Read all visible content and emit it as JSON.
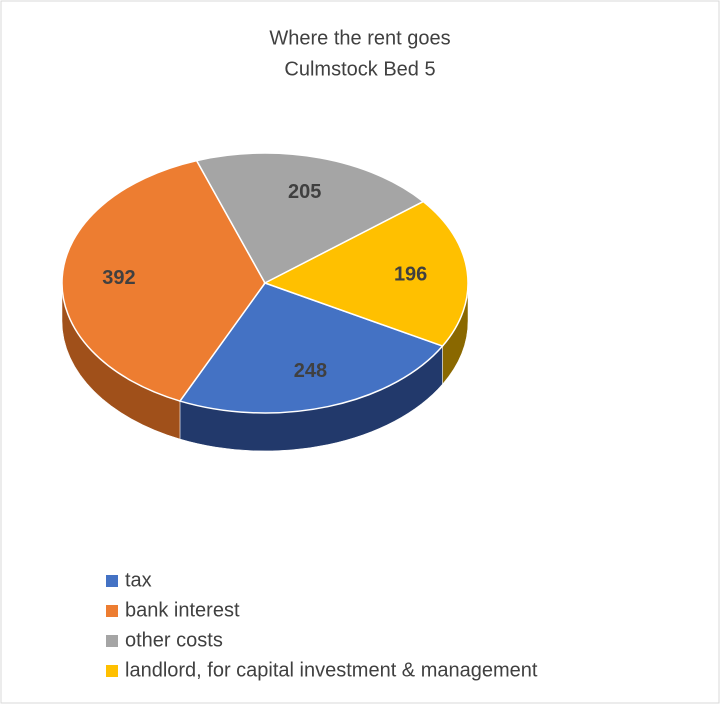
{
  "chart_data": {
    "type": "pie",
    "title": "Where the rent goes",
    "subtitle": "Culmstock Bed 5",
    "categories": [
      "tax",
      "bank interest",
      "other costs",
      "landlord, for capital investment & management"
    ],
    "values": [
      248,
      392,
      205,
      196
    ],
    "colors": [
      "#4472c4",
      "#ed7d31",
      "#a5a5a5",
      "#ffc000"
    ],
    "side_colors": [
      "#22396b",
      "#a0501a",
      "#6e6e6e",
      "#8a6800"
    ],
    "legend": "bottom-left"
  }
}
